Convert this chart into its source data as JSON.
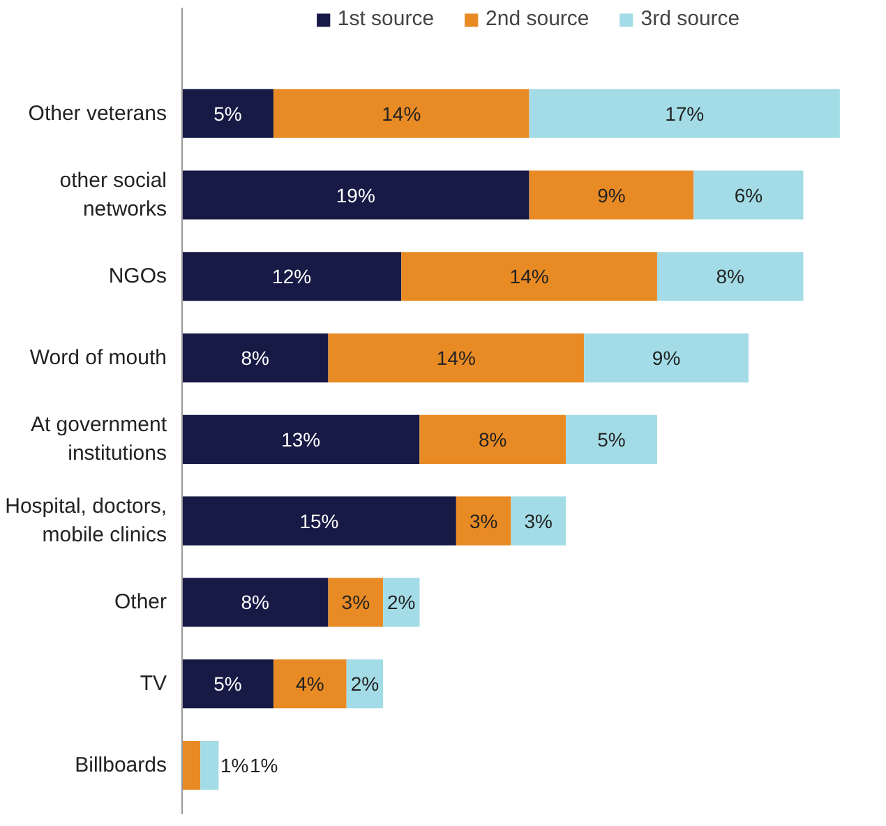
{
  "chart_data": {
    "type": "bar",
    "orientation": "horizontal",
    "stacked": true,
    "tick_labels": "y",
    "grid": false,
    "legend": "top",
    "categories": [
      "Other veterans",
      "other social networks",
      "NGOs",
      "Word of mouth",
      "At government institutions",
      "Hospital, doctors, mobile clinics",
      "Other",
      "TV",
      "Billboards"
    ],
    "series": [
      {
        "name": "1st source",
        "color": "#161a45",
        "values": [
          5,
          19,
          12,
          8,
          13,
          15,
          8,
          5,
          null
        ],
        "value_labels": [
          "5%",
          "19%",
          "12%",
          "8%",
          "13%",
          "15%",
          "8%",
          "5%",
          null
        ]
      },
      {
        "name": "2nd source",
        "color": "#e98b25",
        "values": [
          14,
          9,
          14,
          14,
          8,
          3,
          3,
          4,
          1
        ],
        "value_labels": [
          "14%",
          "9%",
          "14%",
          "14%",
          "8%",
          "3%",
          "3%",
          "4%",
          "1%"
        ]
      },
      {
        "name": "3rd source",
        "color": "#a3dce6",
        "values": [
          17,
          6,
          8,
          9,
          5,
          3,
          2,
          2,
          1
        ],
        "value_labels": [
          "17%",
          "6%",
          "8%",
          "9%",
          "5%",
          "3%",
          "2%",
          "2%",
          "1%"
        ]
      }
    ]
  }
}
